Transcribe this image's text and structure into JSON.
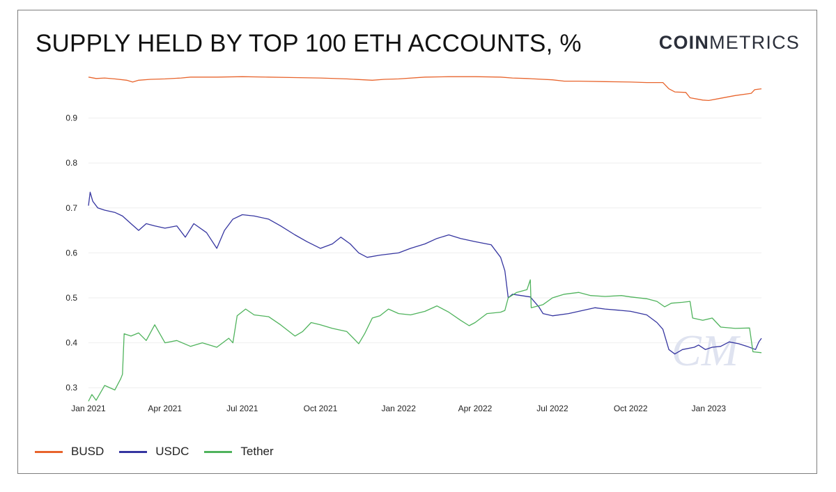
{
  "header": {
    "title": "SUPPLY HELD BY TOP 100 ETH ACCOUNTS, %",
    "logo_bold": "COIN",
    "logo_light": "METRICS"
  },
  "watermark": "CM",
  "colors": {
    "BUSD": "#e8642c",
    "USDC": "#3535a0",
    "Tether": "#4fb35c",
    "grid": "#eeeeee"
  },
  "chart_data": {
    "type": "line",
    "title": "SUPPLY HELD BY TOP 100 ETH ACCOUNTS, %",
    "xlabel": "",
    "ylabel": "",
    "x_start": "2021-01-01",
    "x_end": "2023-03-04",
    "ylim": [
      0.26,
      1.0
    ],
    "yticks": [
      0.3,
      0.4,
      0.5,
      0.6,
      0.7,
      0.8,
      0.9
    ],
    "xticks": [
      {
        "date": "2021-01-01",
        "label": "Jan 2021"
      },
      {
        "date": "2021-04-01",
        "label": "Apr 2021"
      },
      {
        "date": "2021-07-01",
        "label": "Jul 2021"
      },
      {
        "date": "2021-10-01",
        "label": "Oct 2021"
      },
      {
        "date": "2022-01-01",
        "label": "Jan 2022"
      },
      {
        "date": "2022-04-01",
        "label": "Apr 2022"
      },
      {
        "date": "2022-07-01",
        "label": "Jul 2022"
      },
      {
        "date": "2022-10-01",
        "label": "Oct 2022"
      },
      {
        "date": "2023-01-01",
        "label": "Jan 2023"
      }
    ],
    "grid": true,
    "legend": "bottom-left",
    "series": [
      {
        "name": "BUSD",
        "points": [
          [
            "2021-01-01",
            0.991
          ],
          [
            "2021-01-10",
            0.988
          ],
          [
            "2021-01-20",
            0.989
          ],
          [
            "2021-02-01",
            0.987
          ],
          [
            "2021-02-15",
            0.984
          ],
          [
            "2021-02-22",
            0.98
          ],
          [
            "2021-03-01",
            0.984
          ],
          [
            "2021-03-15",
            0.986
          ],
          [
            "2021-04-01",
            0.987
          ],
          [
            "2021-04-20",
            0.989
          ],
          [
            "2021-05-01",
            0.991
          ],
          [
            "2021-06-01",
            0.991
          ],
          [
            "2021-07-01",
            0.992
          ],
          [
            "2021-08-01",
            0.991
          ],
          [
            "2021-09-01",
            0.99
          ],
          [
            "2021-10-01",
            0.989
          ],
          [
            "2021-11-01",
            0.987
          ],
          [
            "2021-12-01",
            0.984
          ],
          [
            "2021-12-15",
            0.986
          ],
          [
            "2022-01-01",
            0.987
          ],
          [
            "2022-02-01",
            0.991
          ],
          [
            "2022-03-01",
            0.992
          ],
          [
            "2022-04-01",
            0.992
          ],
          [
            "2022-05-01",
            0.991
          ],
          [
            "2022-05-15",
            0.989
          ],
          [
            "2022-06-01",
            0.988
          ],
          [
            "2022-07-01",
            0.985
          ],
          [
            "2022-07-15",
            0.982
          ],
          [
            "2022-08-01",
            0.982
          ],
          [
            "2022-09-01",
            0.981
          ],
          [
            "2022-10-01",
            0.98
          ],
          [
            "2022-10-20",
            0.979
          ],
          [
            "2022-11-08",
            0.979
          ],
          [
            "2022-11-15",
            0.965
          ],
          [
            "2022-11-22",
            0.958
          ],
          [
            "2022-12-05",
            0.957
          ],
          [
            "2022-12-10",
            0.945
          ],
          [
            "2022-12-25",
            0.94
          ],
          [
            "2023-01-01",
            0.939
          ],
          [
            "2023-01-15",
            0.944
          ],
          [
            "2023-02-01",
            0.95
          ],
          [
            "2023-02-20",
            0.955
          ],
          [
            "2023-02-24",
            0.963
          ],
          [
            "2023-03-04",
            0.965
          ]
        ]
      },
      {
        "name": "USDC",
        "points": [
          [
            "2021-01-01",
            0.705
          ],
          [
            "2021-01-03",
            0.735
          ],
          [
            "2021-01-06",
            0.715
          ],
          [
            "2021-01-12",
            0.7
          ],
          [
            "2021-01-20",
            0.695
          ],
          [
            "2021-02-01",
            0.69
          ],
          [
            "2021-02-10",
            0.682
          ],
          [
            "2021-02-20",
            0.665
          ],
          [
            "2021-03-01",
            0.65
          ],
          [
            "2021-03-10",
            0.665
          ],
          [
            "2021-03-20",
            0.66
          ],
          [
            "2021-04-01",
            0.655
          ],
          [
            "2021-04-15",
            0.66
          ],
          [
            "2021-04-25",
            0.635
          ],
          [
            "2021-05-05",
            0.665
          ],
          [
            "2021-05-20",
            0.645
          ],
          [
            "2021-06-01",
            0.61
          ],
          [
            "2021-06-10",
            0.65
          ],
          [
            "2021-06-20",
            0.675
          ],
          [
            "2021-07-01",
            0.685
          ],
          [
            "2021-07-15",
            0.682
          ],
          [
            "2021-08-01",
            0.675
          ],
          [
            "2021-08-15",
            0.66
          ],
          [
            "2021-09-01",
            0.64
          ],
          [
            "2021-09-15",
            0.625
          ],
          [
            "2021-10-01",
            0.61
          ],
          [
            "2021-10-15",
            0.62
          ],
          [
            "2021-10-25",
            0.635
          ],
          [
            "2021-11-05",
            0.62
          ],
          [
            "2021-11-15",
            0.6
          ],
          [
            "2021-11-25",
            0.59
          ],
          [
            "2021-12-10",
            0.595
          ],
          [
            "2022-01-01",
            0.6
          ],
          [
            "2022-01-15",
            0.61
          ],
          [
            "2022-02-01",
            0.62
          ],
          [
            "2022-02-15",
            0.632
          ],
          [
            "2022-03-01",
            0.64
          ],
          [
            "2022-03-15",
            0.632
          ],
          [
            "2022-04-01",
            0.625
          ],
          [
            "2022-04-20",
            0.618
          ],
          [
            "2022-05-01",
            0.59
          ],
          [
            "2022-05-06",
            0.56
          ],
          [
            "2022-05-10",
            0.5
          ],
          [
            "2022-05-15",
            0.508
          ],
          [
            "2022-05-25",
            0.505
          ],
          [
            "2022-06-05",
            0.502
          ],
          [
            "2022-06-15",
            0.48
          ],
          [
            "2022-06-20",
            0.465
          ],
          [
            "2022-07-01",
            0.46
          ],
          [
            "2022-07-20",
            0.465
          ],
          [
            "2022-08-01",
            0.47
          ],
          [
            "2022-08-20",
            0.478
          ],
          [
            "2022-09-01",
            0.475
          ],
          [
            "2022-09-20",
            0.472
          ],
          [
            "2022-10-01",
            0.47
          ],
          [
            "2022-10-20",
            0.462
          ],
          [
            "2022-11-01",
            0.445
          ],
          [
            "2022-11-08",
            0.43
          ],
          [
            "2022-11-15",
            0.385
          ],
          [
            "2022-11-22",
            0.375
          ],
          [
            "2022-12-01",
            0.385
          ],
          [
            "2022-12-15",
            0.39
          ],
          [
            "2022-12-20",
            0.395
          ],
          [
            "2022-12-28",
            0.385
          ],
          [
            "2023-01-05",
            0.39
          ],
          [
            "2023-01-15",
            0.392
          ],
          [
            "2023-01-25",
            0.402
          ],
          [
            "2023-02-05",
            0.398
          ],
          [
            "2023-02-15",
            0.392
          ],
          [
            "2023-02-25",
            0.385
          ],
          [
            "2023-03-01",
            0.402
          ],
          [
            "2023-03-04",
            0.41
          ]
        ]
      },
      {
        "name": "Tether",
        "points": [
          [
            "2021-01-01",
            0.27
          ],
          [
            "2021-01-05",
            0.285
          ],
          [
            "2021-01-10",
            0.272
          ],
          [
            "2021-01-20",
            0.305
          ],
          [
            "2021-02-01",
            0.295
          ],
          [
            "2021-02-08",
            0.32
          ],
          [
            "2021-02-10",
            0.33
          ],
          [
            "2021-02-12",
            0.42
          ],
          [
            "2021-02-20",
            0.415
          ],
          [
            "2021-03-01",
            0.422
          ],
          [
            "2021-03-10",
            0.405
          ],
          [
            "2021-03-20",
            0.44
          ],
          [
            "2021-04-01",
            0.4
          ],
          [
            "2021-04-15",
            0.405
          ],
          [
            "2021-05-01",
            0.392
          ],
          [
            "2021-05-15",
            0.4
          ],
          [
            "2021-06-01",
            0.39
          ],
          [
            "2021-06-15",
            0.41
          ],
          [
            "2021-06-20",
            0.4
          ],
          [
            "2021-06-25",
            0.46
          ],
          [
            "2021-07-05",
            0.475
          ],
          [
            "2021-07-15",
            0.462
          ],
          [
            "2021-08-01",
            0.458
          ],
          [
            "2021-08-15",
            0.44
          ],
          [
            "2021-09-01",
            0.415
          ],
          [
            "2021-09-10",
            0.425
          ],
          [
            "2021-09-20",
            0.445
          ],
          [
            "2021-10-01",
            0.44
          ],
          [
            "2021-10-15",
            0.432
          ],
          [
            "2021-11-01",
            0.425
          ],
          [
            "2021-11-15",
            0.398
          ],
          [
            "2021-11-22",
            0.42
          ],
          [
            "2021-12-01",
            0.455
          ],
          [
            "2021-12-10",
            0.46
          ],
          [
            "2021-12-20",
            0.475
          ],
          [
            "2022-01-01",
            0.465
          ],
          [
            "2022-01-15",
            0.462
          ],
          [
            "2022-02-01",
            0.47
          ],
          [
            "2022-02-15",
            0.482
          ],
          [
            "2022-03-01",
            0.468
          ],
          [
            "2022-03-15",
            0.45
          ],
          [
            "2022-03-25",
            0.438
          ],
          [
            "2022-04-01",
            0.445
          ],
          [
            "2022-04-15",
            0.465
          ],
          [
            "2022-05-01",
            0.468
          ],
          [
            "2022-05-06",
            0.472
          ],
          [
            "2022-05-10",
            0.5
          ],
          [
            "2022-05-20",
            0.512
          ],
          [
            "2022-06-01",
            0.518
          ],
          [
            "2022-06-05",
            0.54
          ],
          [
            "2022-06-06",
            0.478
          ],
          [
            "2022-06-20",
            0.485
          ],
          [
            "2022-07-01",
            0.5
          ],
          [
            "2022-07-15",
            0.508
          ],
          [
            "2022-08-01",
            0.512
          ],
          [
            "2022-08-15",
            0.505
          ],
          [
            "2022-09-01",
            0.503
          ],
          [
            "2022-09-20",
            0.505
          ],
          [
            "2022-10-01",
            0.502
          ],
          [
            "2022-10-20",
            0.498
          ],
          [
            "2022-11-01",
            0.492
          ],
          [
            "2022-11-10",
            0.48
          ],
          [
            "2022-11-18",
            0.488
          ],
          [
            "2022-12-01",
            0.49
          ],
          [
            "2022-12-10",
            0.492
          ],
          [
            "2022-12-13",
            0.455
          ],
          [
            "2022-12-25",
            0.45
          ],
          [
            "2023-01-05",
            0.455
          ],
          [
            "2023-01-15",
            0.435
          ],
          [
            "2023-02-01",
            0.432
          ],
          [
            "2023-02-18",
            0.433
          ],
          [
            "2023-02-22",
            0.38
          ],
          [
            "2023-03-04",
            0.378
          ]
        ]
      }
    ]
  },
  "legend": {
    "items": [
      {
        "name": "BUSD"
      },
      {
        "name": "USDC"
      },
      {
        "name": "Tether"
      }
    ]
  }
}
